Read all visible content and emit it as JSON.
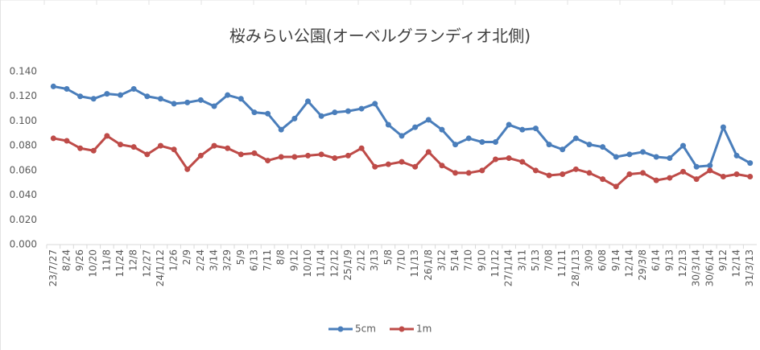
{
  "chart_data": {
    "type": "line",
    "title": "桜みらい公園(オーベルグランディオ北側)",
    "categories": [
      "23/7/27",
      "8/24",
      "9/26",
      "10/20",
      "11/8",
      "11/24",
      "12/8",
      "12/27",
      "24/1/12",
      "1/26",
      "2/9",
      "2/24",
      "3/14",
      "3/29",
      "5/9",
      "6/13",
      "7/11",
      "8/8",
      "9/12",
      "10/10",
      "11/14",
      "12/12",
      "25/1/9",
      "2/12",
      "3/13",
      "5/8",
      "7/10",
      "11/13",
      "26/1/8",
      "3/12",
      "5/14",
      "7/10",
      "9/10",
      "11/12",
      "27/1/14",
      "3/11",
      "5/13",
      "7/08",
      "11/11",
      "28/1/13",
      "3/09",
      "6/08",
      "9/14",
      "12/14",
      "29/3/8",
      "6/14",
      "9/13",
      "12/13",
      "30/3/14",
      "30/6/14",
      "9/12",
      "12/14",
      "31/3/13"
    ],
    "series": [
      {
        "name": "5cm",
        "color": "#4a7ebb",
        "values": [
          0.128,
          0.126,
          0.12,
          0.118,
          0.122,
          0.121,
          0.126,
          0.12,
          0.118,
          0.114,
          0.115,
          0.117,
          0.112,
          0.121,
          0.118,
          0.107,
          0.106,
          0.093,
          0.102,
          0.116,
          0.104,
          0.107,
          0.108,
          0.11,
          0.114,
          0.097,
          0.088,
          0.095,
          0.101,
          0.093,
          0.081,
          0.086,
          0.083,
          0.083,
          0.097,
          0.093,
          0.094,
          0.081,
          0.077,
          0.086,
          0.081,
          0.079,
          0.071,
          0.073,
          0.075,
          0.071,
          0.07,
          0.08,
          0.063,
          0.064,
          0.095,
          0.072,
          0.066
        ]
      },
      {
        "name": "1m",
        "color": "#be4b48",
        "values": [
          0.086,
          0.084,
          0.078,
          0.076,
          0.088,
          0.081,
          0.079,
          0.073,
          0.08,
          0.077,
          0.061,
          0.072,
          0.08,
          0.078,
          0.073,
          0.074,
          0.068,
          0.071,
          0.071,
          0.072,
          0.073,
          0.07,
          0.072,
          0.078,
          0.063,
          0.065,
          0.067,
          0.063,
          0.075,
          0.064,
          0.058,
          0.058,
          0.06,
          0.069,
          0.07,
          0.067,
          0.06,
          0.056,
          0.057,
          0.061,
          0.058,
          0.053,
          0.047,
          0.057,
          0.058,
          0.052,
          0.054,
          0.059,
          0.053,
          0.06,
          0.055,
          0.057,
          0.055
        ]
      }
    ],
    "ylim": [
      0,
      0.14
    ],
    "yticks": [
      {
        "value": 0,
        "label": "0.000"
      },
      {
        "value": 0.02,
        "label": "0.020"
      },
      {
        "value": 0.04,
        "label": "0.040"
      },
      {
        "value": 0.06,
        "label": "0.060"
      },
      {
        "value": 0.08,
        "label": "0.080"
      },
      {
        "value": 0.1,
        "label": "0.100"
      },
      {
        "value": 0.12,
        "label": "0.120"
      },
      {
        "value": 0.14,
        "label": "0.140"
      }
    ],
    "grid": false,
    "legend": "bottom"
  }
}
